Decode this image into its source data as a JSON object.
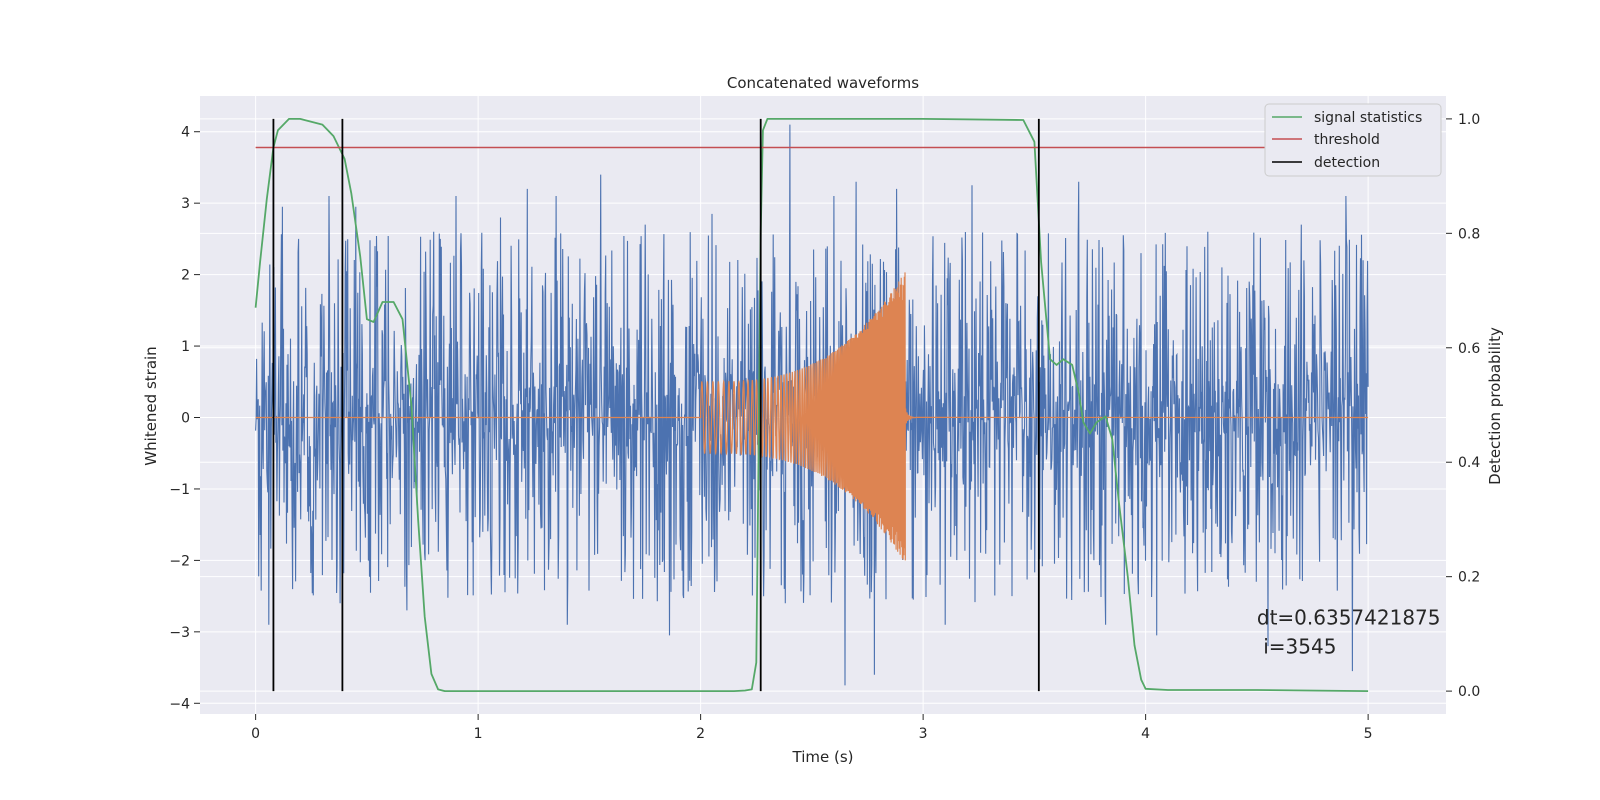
{
  "chart_data": {
    "type": "line",
    "title": "Concatenated waveforms",
    "xlabel": "Time (s)",
    "ylabel": "Whitened strain",
    "y2label": "Detection probability",
    "xlim": [
      -0.25,
      5.35
    ],
    "ylim": [
      -4.15,
      4.5
    ],
    "y2lim": [
      -0.04,
      1.04
    ],
    "xticks": [
      0,
      1,
      2,
      3,
      4,
      5
    ],
    "yticks": [
      4,
      3,
      2,
      1,
      0,
      -1,
      -2,
      -3,
      -4
    ],
    "y2ticks": [
      1.0,
      0.8,
      0.6,
      0.4,
      0.2,
      0.0
    ],
    "xtick_labels": [
      "0",
      "1",
      "2",
      "3",
      "4",
      "5"
    ],
    "ytick_labels": [
      "4",
      "3",
      "2",
      "1",
      "0",
      "−1",
      "−2",
      "−3",
      "−4"
    ],
    "y2tick_labels": [
      "1.0",
      "0.8",
      "0.6",
      "0.4",
      "0.2",
      "0.0"
    ],
    "grid": true,
    "legend_position": "top-right",
    "legend": [
      "signal statistics",
      "threshold",
      "detection"
    ],
    "colors": {
      "strain": "#4c72b0",
      "injected_signal": "#dd8452",
      "signal_statistics": "#55a868",
      "threshold": "#c44e52",
      "detection": "#000000",
      "plot_bg": "#eaeaf2",
      "grid": "#ffffff"
    },
    "strain": {
      "x_start": 0,
      "x_end": 5,
      "envelope": 0.95,
      "peaks": [
        {
          "x": 0.06,
          "y": -2.9
        },
        {
          "x": 0.12,
          "y": 2.95
        },
        {
          "x": 0.33,
          "y": 3.1
        },
        {
          "x": 0.38,
          "y": -2.6
        },
        {
          "x": 0.45,
          "y": 2.95
        },
        {
          "x": 0.68,
          "y": -2.7
        },
        {
          "x": 0.8,
          "y": 2.6
        },
        {
          "x": 0.9,
          "y": 3.1
        },
        {
          "x": 1.1,
          "y": 2.8
        },
        {
          "x": 1.22,
          "y": 3.2
        },
        {
          "x": 1.35,
          "y": 3.1
        },
        {
          "x": 1.4,
          "y": -2.9
        },
        {
          "x": 1.55,
          "y": 3.4
        },
        {
          "x": 1.75,
          "y": 2.7
        },
        {
          "x": 1.86,
          "y": -3.05
        },
        {
          "x": 2.05,
          "y": 2.85
        },
        {
          "x": 2.4,
          "y": 4.1
        },
        {
          "x": 2.38,
          "y": -2.6
        },
        {
          "x": 2.6,
          "y": 3.1
        },
        {
          "x": 2.65,
          "y": -3.75
        },
        {
          "x": 2.7,
          "y": 3.3
        },
        {
          "x": 2.78,
          "y": -3.6
        },
        {
          "x": 2.88,
          "y": 3.2
        },
        {
          "x": 3.1,
          "y": -2.9
        },
        {
          "x": 3.22,
          "y": 3.25
        },
        {
          "x": 3.4,
          "y": -2.5
        },
        {
          "x": 3.52,
          "y": -2.8
        },
        {
          "x": 3.7,
          "y": 3.3
        },
        {
          "x": 3.82,
          "y": -2.9
        },
        {
          "x": 3.9,
          "y": 2.55
        },
        {
          "x": 4.05,
          "y": -3.05
        },
        {
          "x": 4.28,
          "y": 2.6
        },
        {
          "x": 4.55,
          "y": -3.2
        },
        {
          "x": 4.7,
          "y": 2.7
        },
        {
          "x": 4.9,
          "y": 3.1
        },
        {
          "x": 4.93,
          "y": -3.55
        }
      ]
    },
    "injected_signal": {
      "start": 2.0,
      "end": 2.92,
      "amplitude_start": 0.5,
      "amplitude_end": 2.05,
      "peak_min": -2.0,
      "ringdown_end": 2.97
    },
    "signal_statistics": {
      "x": [
        0.0,
        0.02,
        0.05,
        0.08,
        0.1,
        0.15,
        0.2,
        0.3,
        0.35,
        0.4,
        0.43,
        0.47,
        0.5,
        0.53,
        0.57,
        0.62,
        0.66,
        0.7,
        0.73,
        0.76,
        0.79,
        0.82,
        0.85,
        1.0,
        1.5,
        2.0,
        2.15,
        2.2,
        2.23,
        2.25,
        2.26,
        2.27,
        2.28,
        2.3,
        2.35,
        2.5,
        3.0,
        3.45,
        3.5,
        3.53,
        3.57,
        3.6,
        3.63,
        3.67,
        3.7,
        3.72,
        3.75,
        3.78,
        3.82,
        3.85,
        3.88,
        3.92,
        3.95,
        3.98,
        4.0,
        4.1,
        4.5,
        5.0
      ],
      "y": [
        0.67,
        0.75,
        0.86,
        0.95,
        0.98,
        1.0,
        1.0,
        0.99,
        0.97,
        0.93,
        0.87,
        0.76,
        0.65,
        0.645,
        0.68,
        0.68,
        0.65,
        0.5,
        0.3,
        0.13,
        0.03,
        0.003,
        0.0,
        0.0,
        0.0,
        0.0,
        0.0,
        0.001,
        0.003,
        0.05,
        0.4,
        0.8,
        0.98,
        1.0,
        1.0,
        1.0,
        1.0,
        0.998,
        0.96,
        0.75,
        0.58,
        0.57,
        0.58,
        0.57,
        0.52,
        0.47,
        0.45,
        0.47,
        0.48,
        0.44,
        0.33,
        0.2,
        0.08,
        0.02,
        0.004,
        0.002,
        0.002,
        0.0
      ]
    },
    "threshold": {
      "value": 0.95,
      "x": [
        0,
        5
      ]
    },
    "detection": {
      "x": [
        0.08,
        0.39,
        2.27,
        3.52
      ],
      "y2": [
        0.0,
        1.0
      ]
    },
    "annotations": [
      {
        "text": "dt=0.6357421875",
        "x": 4.5,
        "y": -2.9
      },
      {
        "text": " i=3545",
        "x": 4.5,
        "y": -3.3
      }
    ]
  }
}
